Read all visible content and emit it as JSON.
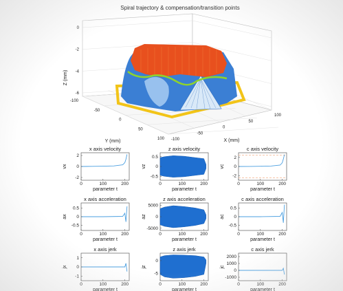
{
  "chart_data": [
    {
      "type": "surface3d",
      "title": "Spiral trajectory & compensation/transition points",
      "xlabel": "X (mm)",
      "ylabel": "Y (mm)",
      "zlabel": "Z (mm)",
      "xticks": [
        "-100",
        "-50",
        "0",
        "50",
        "100"
      ],
      "yticks": [
        "-100",
        "-50",
        "0",
        "50",
        "100"
      ],
      "zticks": [
        "0",
        "-2",
        "-4",
        "-6"
      ],
      "xlim": [
        -100,
        100
      ],
      "ylim": [
        -100,
        100
      ],
      "zlim": [
        -6,
        0
      ],
      "series": [],
      "colors": {
        "surface": "#3b7fd4",
        "top_points": "#e8501e",
        "transition_line": "#8ed32c",
        "base_outline": "#f2c418"
      },
      "grid": true
    },
    {
      "type": "line",
      "title": "x axis velocity",
      "xlabel": "parameter t",
      "ylabel": "vx",
      "xticks": [
        "0",
        "100",
        "200"
      ],
      "yticks": [
        "2",
        "0",
        "-2"
      ],
      "xlim": [
        0,
        220
      ],
      "ylim": [
        -2.5,
        2.5
      ],
      "x": [
        0,
        50,
        100,
        150,
        190,
        200,
        205,
        210
      ],
      "y": [
        0,
        0.02,
        0.05,
        0.1,
        0.3,
        0.7,
        1.3,
        2.2
      ]
    },
    {
      "type": "area",
      "title": "z axis velocity",
      "xlabel": "parameter t",
      "ylabel": "vz",
      "xticks": [
        "0",
        "100",
        "200"
      ],
      "yticks": [
        "0.5",
        "0",
        "-0.5"
      ],
      "xlim": [
        0,
        220
      ],
      "ylim": [
        -0.7,
        0.7
      ],
      "x": [
        0,
        20,
        60,
        110,
        160,
        200,
        210
      ],
      "upper": [
        0.45,
        0.5,
        0.55,
        0.52,
        0.45,
        0.4,
        0.1
      ],
      "lower": [
        -0.45,
        -0.5,
        -0.55,
        -0.52,
        -0.45,
        -0.4,
        -0.1
      ]
    },
    {
      "type": "line",
      "title": "c axis velocity",
      "xlabel": "parameter t",
      "ylabel": "vc",
      "xticks": [
        "0",
        "100",
        "200"
      ],
      "yticks": [
        "2",
        "0",
        "-2"
      ],
      "xlim": [
        0,
        220
      ],
      "ylim": [
        -3,
        3
      ],
      "x": [
        0,
        50,
        100,
        150,
        190,
        200,
        205,
        210
      ],
      "y": [
        0,
        0.02,
        0.05,
        0.1,
        0.3,
        0.8,
        1.6,
        2.6
      ],
      "limits": [
        2.5,
        -2.5
      ]
    },
    {
      "type": "line",
      "title": "x axis acceleration",
      "xlabel": "parameter t",
      "ylabel": "ax",
      "xticks": [
        "0",
        "100",
        "200"
      ],
      "yticks": [
        "0.5",
        "0",
        "-0.5"
      ],
      "xlim": [
        0,
        220
      ],
      "ylim": [
        -0.8,
        0.8
      ],
      "x": [
        0,
        100,
        190,
        200,
        205,
        210
      ],
      "y": [
        0,
        0,
        0.02,
        0.2,
        -0.3,
        0.6
      ]
    },
    {
      "type": "area",
      "title": "z axis acceleration",
      "xlabel": "parameter t",
      "ylabel": "az",
      "xticks": [
        "0",
        "100",
        "200"
      ],
      "yticks": [
        "5000",
        "0",
        "-5000"
      ],
      "xlim": [
        0,
        220
      ],
      "ylim": [
        -6000,
        6000
      ],
      "x": [
        0,
        20,
        60,
        110,
        160,
        200,
        210
      ],
      "upper": [
        3500,
        4200,
        4800,
        4400,
        3800,
        3000,
        800
      ],
      "lower": [
        -3500,
        -4200,
        -4800,
        -4400,
        -3800,
        -3000,
        -800
      ]
    },
    {
      "type": "line",
      "title": "c axis acceleration",
      "xlabel": "parameter t",
      "ylabel": "ac",
      "xticks": [
        "0",
        "100",
        "200"
      ],
      "yticks": [
        "0.5",
        "0",
        "-0.5"
      ],
      "xlim": [
        0,
        220
      ],
      "ylim": [
        -0.8,
        0.8
      ],
      "x": [
        0,
        100,
        190,
        200,
        205,
        210
      ],
      "y": [
        0,
        0,
        0.02,
        0.25,
        -0.35,
        0.7
      ]
    },
    {
      "type": "line",
      "title": "x axis jerk",
      "xlabel": "parameter t",
      "ylabel": "jx",
      "xticks": [
        "0",
        "100",
        "200"
      ],
      "yticks": [
        "1",
        "0",
        "-1"
      ],
      "xlim": [
        0,
        220
      ],
      "ylim": [
        -1.5,
        1.5
      ],
      "x": [
        0,
        100,
        200,
        205,
        210
      ],
      "y": [
        0,
        0,
        0,
        0.4,
        -0.5
      ]
    },
    {
      "type": "area",
      "title": "z axis jerk",
      "xlabel": "parameter t",
      "ylabel": "jz",
      "xticks": [
        "0",
        "100",
        "200"
      ],
      "yticks": [
        "0",
        "-5"
      ],
      "xlim": [
        0,
        220
      ],
      "ylim": [
        -8,
        3
      ],
      "x": [
        0,
        20,
        60,
        110,
        160,
        200,
        210
      ],
      "upper": [
        1.5,
        2,
        2.3,
        2.2,
        2,
        1.5,
        0.3
      ],
      "lower": [
        -5.5,
        -6.5,
        -7,
        -6.8,
        -6.3,
        -5.5,
        -1
      ]
    },
    {
      "type": "line",
      "title": "c axis jerk",
      "xlabel": "parameter t",
      "ylabel": "jc",
      "xticks": [
        "0",
        "100",
        "200"
      ],
      "yticks": [
        "2000",
        "1000",
        "0",
        "-1000"
      ],
      "xlim": [
        0,
        220
      ],
      "ylim": [
        -1500,
        2500
      ],
      "x": [
        0,
        100,
        200,
        205,
        210
      ],
      "y": [
        0,
        0,
        0,
        300,
        -600
      ]
    }
  ]
}
